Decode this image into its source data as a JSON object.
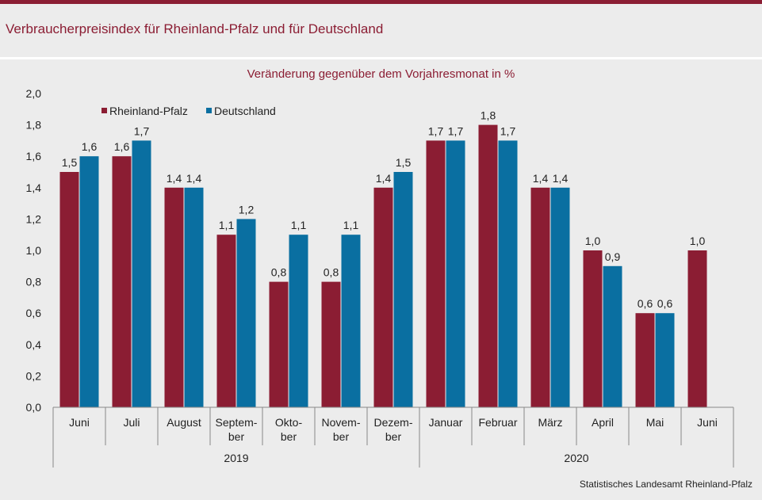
{
  "header": {
    "title": "Verbraucherpreisindex für Rheinland-Pfalz und für Deutschland"
  },
  "source": "Statistisches Landesamt Rheinland-Pfalz",
  "chart_data": {
    "type": "bar",
    "subtitle": "Veränderung gegenüber dem Vorjahresmonat in %",
    "categories": [
      [
        "Juni"
      ],
      [
        "Juli"
      ],
      [
        "August"
      ],
      [
        "Septem-",
        "ber"
      ],
      [
        "Okto-",
        "ber"
      ],
      [
        "Novem-",
        "ber"
      ],
      [
        "Dezem-",
        "ber"
      ],
      [
        "Januar"
      ],
      [
        "Februar"
      ],
      [
        "März"
      ],
      [
        "April"
      ],
      [
        "Mai"
      ],
      [
        "Juni"
      ]
    ],
    "groups": [
      {
        "label": "2019",
        "start": 0,
        "end": 6
      },
      {
        "label": "2020",
        "start": 7,
        "end": 12
      }
    ],
    "series": [
      {
        "name": "Rheinland-Pfalz",
        "color": "#8b1d33",
        "values": [
          1.5,
          1.6,
          1.4,
          1.1,
          0.8,
          0.8,
          1.4,
          1.7,
          1.8,
          1.4,
          1.0,
          0.6,
          1.0
        ]
      },
      {
        "name": "Deutschland",
        "color": "#0a6fa1",
        "values": [
          1.6,
          1.7,
          1.4,
          1.2,
          1.1,
          1.1,
          1.5,
          1.7,
          1.7,
          1.4,
          0.9,
          0.6,
          null
        ]
      }
    ],
    "ylim": [
      0,
      2.0
    ],
    "yticks": [
      "0,0",
      "0,2",
      "0,4",
      "0,6",
      "0,8",
      "1,0",
      "1,2",
      "1,4",
      "1,6",
      "1,8",
      "2,0"
    ],
    "grid": false,
    "legend_position": "top-left",
    "decimal_separator": ","
  }
}
